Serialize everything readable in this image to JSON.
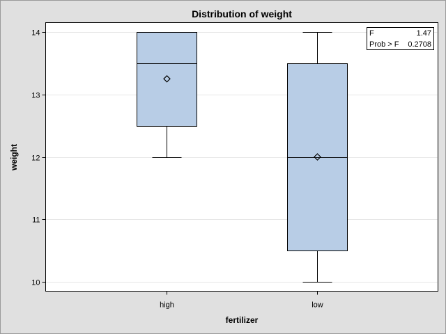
{
  "chart_data": {
    "type": "box",
    "title": "Distribution of weight",
    "xlabel": "fertilizer",
    "ylabel": "weight",
    "ylim": [
      9.85,
      14.15
    ],
    "yticks": [
      10,
      11,
      12,
      13,
      14
    ],
    "categories": [
      "high",
      "low"
    ],
    "boxes": [
      {
        "category": "high",
        "min": 12.0,
        "q1": 12.5,
        "median": 13.5,
        "q3": 14.0,
        "max": 14.0,
        "mean": 13.25
      },
      {
        "category": "low",
        "min": 10.0,
        "q1": 10.5,
        "median": 12.0,
        "q3": 13.5,
        "max": 14.0,
        "mean": 12.0
      }
    ],
    "gridlines": true,
    "colors": {
      "box_fill": "#b8cde6",
      "outline": "#000000",
      "grid": "#e6e6e6",
      "frame": "#e0e0e0"
    },
    "inset": {
      "placement": "top-right",
      "rows": [
        {
          "label": "F",
          "value": "1.47"
        },
        {
          "label": "Prob > F",
          "value": "0.2708"
        }
      ]
    }
  }
}
